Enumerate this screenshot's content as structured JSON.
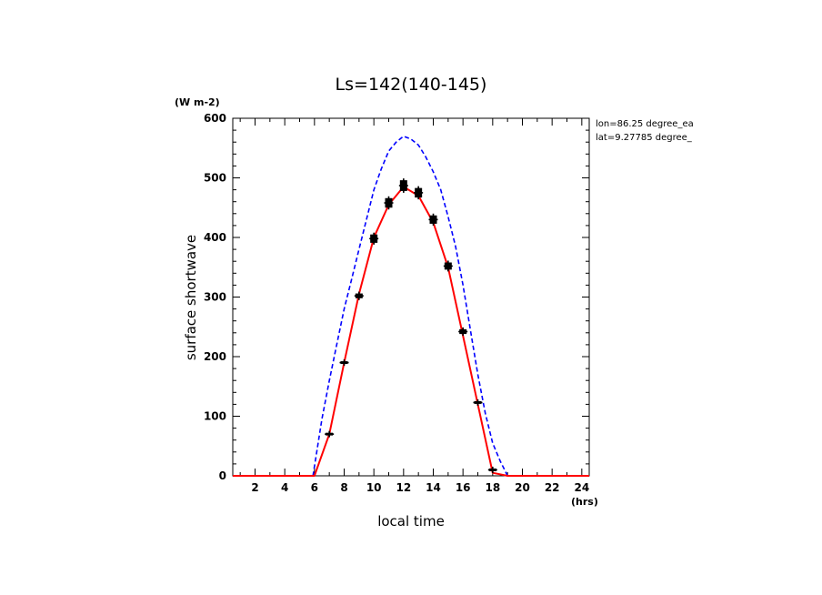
{
  "chart_data": {
    "type": "line",
    "title": "Ls=142(140-145)",
    "xlabel": "local time",
    "ylabel": "surface shortwave",
    "x_unit": "(hrs)",
    "y_unit": "(W m-2)",
    "annotations": [
      "lon=86.25 degree_ea",
      "lat=9.27785 degree_"
    ],
    "xlim": [
      0.5,
      24.5
    ],
    "ylim": [
      0,
      600
    ],
    "x_ticks": [
      2,
      4,
      6,
      8,
      10,
      12,
      14,
      16,
      18,
      20,
      22,
      24
    ],
    "y_ticks": [
      0,
      100,
      200,
      300,
      400,
      500,
      600
    ],
    "grid": false,
    "series": [
      {
        "style": "dashed",
        "color": "#0000ff",
        "x": [
          0.5,
          1,
          2,
          3,
          4,
          5,
          5.9,
          6.5,
          7,
          7.5,
          8,
          8.5,
          9,
          9.5,
          10,
          10.5,
          11,
          11.5,
          12,
          12.5,
          13,
          13.5,
          14,
          14.5,
          15,
          15.5,
          16,
          16.5,
          17,
          17.5,
          18,
          18.5,
          19,
          20,
          21,
          22,
          23,
          24,
          24.5
        ],
        "y": [
          0,
          0,
          0,
          0,
          0,
          0,
          0,
          95,
          160,
          220,
          280,
          330,
          380,
          430,
          480,
          515,
          545,
          560,
          570,
          565,
          555,
          535,
          510,
          480,
          435,
          385,
          320,
          245,
          170,
          105,
          55,
          25,
          0,
          0,
          0,
          0,
          0,
          0,
          0
        ]
      },
      {
        "style": "solid",
        "color": "#ff0000",
        "x": [
          0.5,
          1,
          2,
          3,
          4,
          5,
          6,
          7,
          8,
          9,
          10,
          11,
          12,
          13,
          14,
          15,
          16,
          17,
          18,
          19,
          20,
          21,
          22,
          23,
          24,
          24.5
        ],
        "y": [
          0,
          0,
          0,
          0,
          0,
          0,
          0,
          70,
          190,
          305,
          400,
          455,
          485,
          470,
          425,
          350,
          235,
          120,
          5,
          0,
          0,
          0,
          0,
          0,
          0,
          0
        ]
      }
    ],
    "observations": {
      "color": "#000000",
      "x": [
        7,
        8,
        9,
        10,
        11,
        12,
        13,
        14,
        15,
        16,
        17,
        18
      ],
      "y": [
        70,
        190,
        302,
        398,
        458,
        487,
        475,
        430,
        352,
        242,
        123,
        10
      ],
      "err": [
        1,
        2,
        4,
        7,
        8,
        9,
        8,
        7,
        6,
        4,
        2,
        1
      ]
    }
  }
}
